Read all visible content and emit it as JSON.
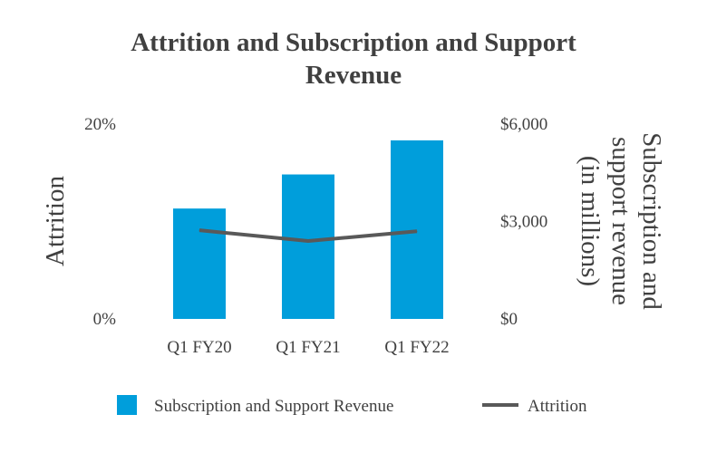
{
  "chart_data": {
    "type": "bar",
    "title_lines": [
      "Attrition and Subscription and Support",
      "Revenue"
    ],
    "categories": [
      "Q1 FY20",
      "Q1 FY21",
      "Q1 FY22"
    ],
    "series": [
      {
        "name": "Subscription and Support Revenue",
        "type": "bar",
        "axis": "right",
        "color": "#009edb",
        "values": [
          3400,
          4450,
          5500
        ]
      },
      {
        "name": "Attrition",
        "type": "line",
        "axis": "left",
        "color": "#595959",
        "values": [
          9.1,
          8.0,
          9.0
        ]
      }
    ],
    "y_left": {
      "label": "Attrition",
      "range": [
        0,
        20
      ],
      "ticks": [
        0,
        20
      ],
      "tick_labels": [
        "0%",
        "20%"
      ]
    },
    "y_right": {
      "label_lines": [
        "Subscription and",
        "support revenue",
        "(in millions)"
      ],
      "range": [
        0,
        6000
      ],
      "ticks": [
        0,
        3000,
        6000
      ],
      "tick_labels": [
        "$0",
        "$3,000",
        "$6,000"
      ]
    },
    "legend": {
      "position": "bottom",
      "items": [
        "Subscription and Support Revenue",
        "Attrition"
      ]
    },
    "grid": false
  }
}
